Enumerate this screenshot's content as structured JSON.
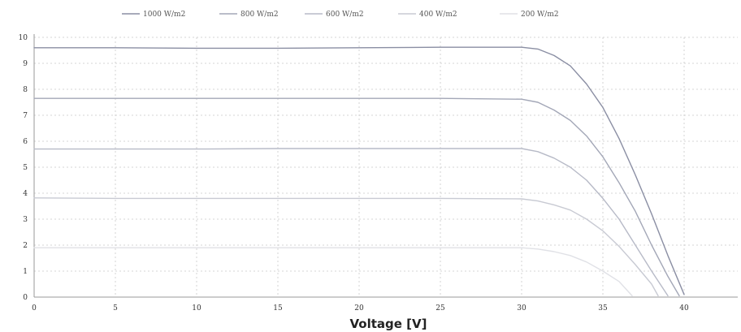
{
  "chart_data": {
    "type": "line",
    "title": "",
    "xlabel": "Voltage [V]",
    "ylabel": "",
    "xlim": [
      0,
      40
    ],
    "ylim": [
      0,
      10
    ],
    "xticks": [
      0,
      5,
      10,
      15,
      20,
      25,
      30,
      35,
      40
    ],
    "yticks": [
      0,
      1,
      2,
      3,
      4,
      5,
      6,
      7,
      8,
      9,
      10
    ],
    "grid": true,
    "legend_position": "top",
    "series": [
      {
        "name": "1000 W/m2",
        "color": "#8a8ea3",
        "points": [
          [
            0,
            9.6
          ],
          [
            5,
            9.6
          ],
          [
            10,
            9.58
          ],
          [
            15,
            9.58
          ],
          [
            20,
            9.6
          ],
          [
            25,
            9.62
          ],
          [
            30,
            9.62
          ],
          [
            31,
            9.55
          ],
          [
            32,
            9.3
          ],
          [
            33,
            8.9
          ],
          [
            34,
            8.2
          ],
          [
            35,
            7.3
          ],
          [
            36,
            6.1
          ],
          [
            37,
            4.7
          ],
          [
            38,
            3.2
          ],
          [
            39,
            1.6
          ],
          [
            40,
            0.1
          ]
        ]
      },
      {
        "name": "800 W/m2",
        "color": "#a3a7b7",
        "points": [
          [
            0,
            7.65
          ],
          [
            5,
            7.65
          ],
          [
            10,
            7.65
          ],
          [
            15,
            7.65
          ],
          [
            20,
            7.65
          ],
          [
            25,
            7.65
          ],
          [
            30,
            7.62
          ],
          [
            31,
            7.5
          ],
          [
            32,
            7.2
          ],
          [
            33,
            6.8
          ],
          [
            34,
            6.2
          ],
          [
            35,
            5.4
          ],
          [
            36,
            4.4
          ],
          [
            37,
            3.3
          ],
          [
            38,
            2.0
          ],
          [
            39,
            0.8
          ],
          [
            39.7,
            0.05
          ]
        ]
      },
      {
        "name": "600 W/m2",
        "color": "#b7bac7",
        "points": [
          [
            0,
            5.7
          ],
          [
            5,
            5.7
          ],
          [
            10,
            5.7
          ],
          [
            15,
            5.72
          ],
          [
            20,
            5.72
          ],
          [
            25,
            5.72
          ],
          [
            30,
            5.72
          ],
          [
            31,
            5.6
          ],
          [
            32,
            5.35
          ],
          [
            33,
            5.0
          ],
          [
            34,
            4.5
          ],
          [
            35,
            3.8
          ],
          [
            36,
            3.0
          ],
          [
            37,
            2.0
          ],
          [
            38,
            1.0
          ],
          [
            39,
            0.05
          ]
        ]
      },
      {
        "name": "400 W/m2",
        "color": "#c8cad3",
        "points": [
          [
            0,
            3.82
          ],
          [
            5,
            3.8
          ],
          [
            10,
            3.8
          ],
          [
            15,
            3.8
          ],
          [
            20,
            3.8
          ],
          [
            25,
            3.8
          ],
          [
            30,
            3.78
          ],
          [
            31,
            3.7
          ],
          [
            32,
            3.55
          ],
          [
            33,
            3.35
          ],
          [
            34,
            3.0
          ],
          [
            35,
            2.55
          ],
          [
            36,
            1.95
          ],
          [
            37,
            1.25
          ],
          [
            38,
            0.5
          ],
          [
            38.4,
            0.05
          ]
        ]
      },
      {
        "name": "200 W/m2",
        "color": "#e0e1e6",
        "points": [
          [
            0,
            1.9
          ],
          [
            5,
            1.9
          ],
          [
            10,
            1.9
          ],
          [
            15,
            1.9
          ],
          [
            20,
            1.9
          ],
          [
            25,
            1.9
          ],
          [
            30,
            1.9
          ],
          [
            31,
            1.85
          ],
          [
            32,
            1.75
          ],
          [
            33,
            1.6
          ],
          [
            34,
            1.35
          ],
          [
            35,
            1.0
          ],
          [
            36,
            0.6
          ],
          [
            36.8,
            0.05
          ]
        ]
      }
    ]
  }
}
